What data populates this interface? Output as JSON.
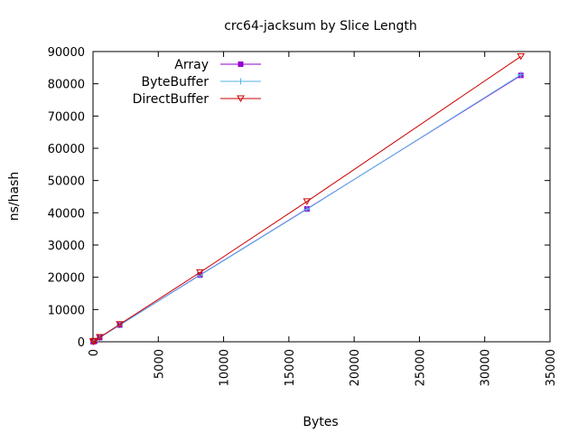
{
  "chart_data": {
    "type": "line",
    "title": "crc64-jacksum by Slice Length",
    "xlabel": "Bytes",
    "ylabel": "ns/hash",
    "xlim": [
      0,
      35000
    ],
    "ylim": [
      0,
      90000
    ],
    "xticks": [
      0,
      5000,
      10000,
      15000,
      20000,
      25000,
      30000,
      35000
    ],
    "yticks": [
      0,
      10000,
      20000,
      30000,
      40000,
      50000,
      60000,
      70000,
      80000,
      90000
    ],
    "x_tick_labels": [
      "0",
      "5000",
      "10000",
      "15000",
      "20000",
      "25000",
      "30000",
      "35000"
    ],
    "y_tick_labels": [
      "0",
      "10000",
      "20000",
      "30000",
      "40000",
      "50000",
      "60000",
      "70000",
      "80000",
      "90000"
    ],
    "grid": false,
    "legend_position": "top-left",
    "series": [
      {
        "name": "Array",
        "color": "#9400d3",
        "marker": "square",
        "points": [
          [
            8,
            20
          ],
          [
            32,
            60
          ],
          [
            128,
            170
          ],
          [
            512,
            1300
          ],
          [
            2048,
            5200
          ],
          [
            8192,
            20700
          ],
          [
            16384,
            41200
          ],
          [
            32768,
            82600
          ]
        ]
      },
      {
        "name": "ByteBuffer",
        "color": "#56b4e9",
        "marker": "plus",
        "points": [
          [
            8,
            25
          ],
          [
            32,
            70
          ],
          [
            128,
            180
          ],
          [
            512,
            1320
          ],
          [
            2048,
            5150
          ],
          [
            8192,
            20600
          ],
          [
            16384,
            41100
          ],
          [
            32768,
            82800
          ]
        ]
      },
      {
        "name": "DirectBuffer",
        "color": "#cc0000",
        "marker": "triangle-down",
        "points": [
          [
            8,
            30
          ],
          [
            32,
            80
          ],
          [
            128,
            200
          ],
          [
            512,
            1400
          ],
          [
            2048,
            5400
          ],
          [
            8192,
            21500
          ],
          [
            16384,
            43500
          ],
          [
            32768,
            88500
          ]
        ]
      }
    ]
  }
}
